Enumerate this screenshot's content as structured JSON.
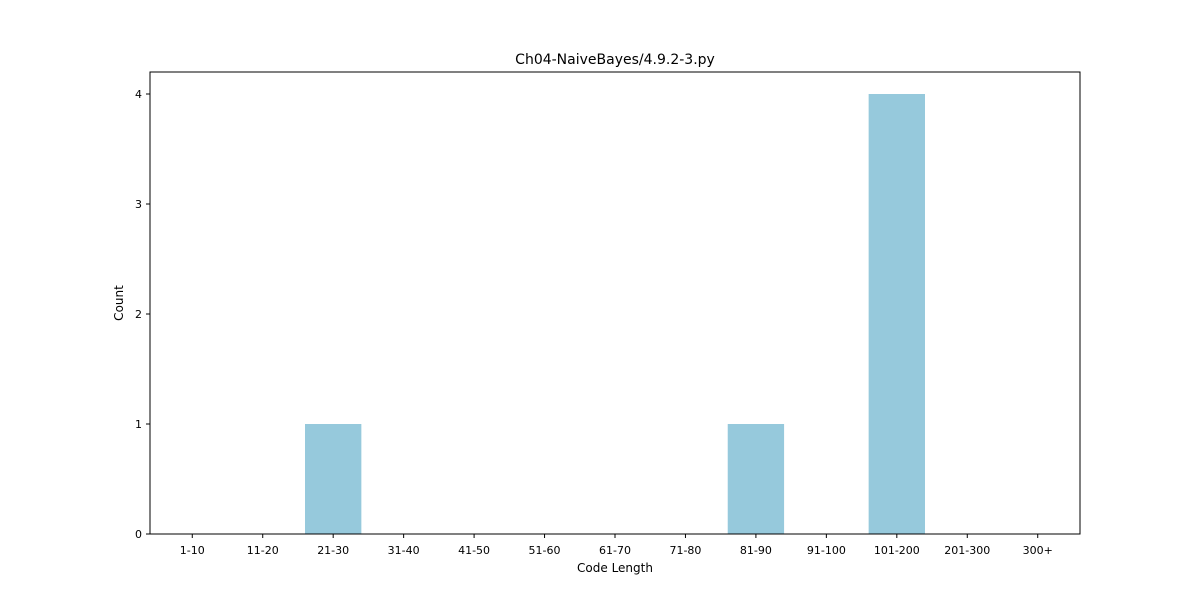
{
  "chart_data": {
    "type": "bar",
    "title": "Ch04-NaiveBayes/4.9.2-3.py",
    "xlabel": "Code Length",
    "ylabel": "Count",
    "categories": [
      "1-10",
      "11-20",
      "21-30",
      "31-40",
      "41-50",
      "51-60",
      "61-70",
      "71-80",
      "81-90",
      "91-100",
      "101-200",
      "201-300",
      "300+"
    ],
    "values": [
      0,
      0,
      1,
      0,
      0,
      0,
      0,
      0,
      1,
      0,
      4,
      0,
      0
    ],
    "ylim": [
      0,
      4.2
    ],
    "yticks": [
      0,
      1,
      2,
      3,
      4
    ],
    "bar_color": "#96c9dc",
    "grid": false,
    "legend": "none"
  }
}
